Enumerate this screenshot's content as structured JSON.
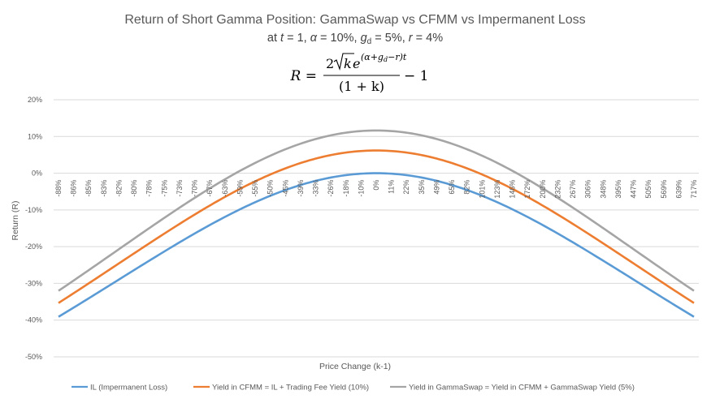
{
  "chart_data": {
    "type": "line",
    "title": "Return of Short Gamma Position: GammaSwap vs CFMM vs Impermanent Loss",
    "subtitle": {
      "prefix": "at ",
      "t_symbol": "t",
      "t_value": " = 1, ",
      "alpha_symbol": "α",
      "alpha_value": " = 10%, ",
      "g_symbol": "g",
      "g_sub": "d",
      "g_value": " = 5%, ",
      "r_symbol": "r",
      "r_value": " = 4%"
    },
    "formula": {
      "lhs": "R =",
      "numerator_coef": "2",
      "numerator_k": "k",
      "numerator_e": "e",
      "exponent": "(α+g",
      "exponent_sub": "d",
      "exponent_tail": "−r)t",
      "denominator": "(1 + k)",
      "tail": "− 1"
    },
    "xlabel": "Price Change (k-1)",
    "ylabel": "Return (R)",
    "ylim": [
      -0.5,
      0.2
    ],
    "yticks": [
      0.2,
      0.1,
      0.0,
      -0.1,
      -0.2,
      -0.3,
      -0.4,
      -0.5
    ],
    "ytick_labels": [
      "20%",
      "10%",
      "0%",
      "-10%",
      "-20%",
      "-30%",
      "-40%",
      "-50%"
    ],
    "x_step_log": 0.08,
    "x_min_log": -2.16,
    "x_max_log": 2.16,
    "x_tick_labels": [
      "-88%",
      "-86%",
      "-85%",
      "-83%",
      "-82%",
      "-80%",
      "-78%",
      "-75%",
      "-73%",
      "-70%",
      "-67%",
      "-63%",
      "-59%",
      "-55%",
      "-50%",
      "-45%",
      "-39%",
      "-33%",
      "-26%",
      "-18%",
      "-10%",
      "0%",
      "11%",
      "22%",
      "35%",
      "49%",
      "65%",
      "82%",
      "101%",
      "123%",
      "146%",
      "172%",
      "200%",
      "232%",
      "267%",
      "306%",
      "348%",
      "395%",
      "447%",
      "505%",
      "569%",
      "639%",
      "717%"
    ],
    "series": [
      {
        "name": "IL (Impermanent Loss)",
        "color": "#5b9bd5",
        "alpha": 0.0,
        "gd": 0.0,
        "r": 0.0,
        "t": 1,
        "offset": 0.0
      },
      {
        "name": "Yield in CFMM = IL + Trading Fee Yield (10%)",
        "color": "#ed7d31",
        "alpha": 0.1,
        "gd": 0.0,
        "r": 0.04,
        "t": 1,
        "offset": 0.0
      },
      {
        "name": "Yield in GammaSwap = Yield in CFMM + GammaSwap Yield (5%)",
        "color": "#a5a5a5",
        "alpha": 0.1,
        "gd": 0.05,
        "r": 0.04,
        "t": 1,
        "offset": 0.0
      }
    ],
    "grid": true,
    "legend_position": "bottom"
  }
}
